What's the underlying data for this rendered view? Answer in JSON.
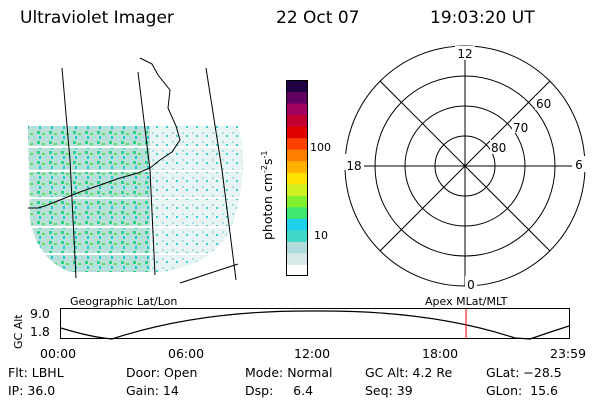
{
  "header": {
    "title": "Ultraviolet Imager",
    "date": "22 Oct 07",
    "time": "19:03:20 UT"
  },
  "colorbar": {
    "label": "photon cm",
    "label_sup1": "-2",
    "label_mid": "s",
    "label_sup2": "-1",
    "ticks": [
      "100",
      "10"
    ],
    "colors": [
      "#ffffff",
      "#d8e8e8",
      "#b0dcdc",
      "#40d8c8",
      "#20d0e8",
      "#40e870",
      "#80f030",
      "#d0f020",
      "#ffe000",
      "#ffb000",
      "#ff8000",
      "#ff4000",
      "#e00000",
      "#c00030",
      "#a00060",
      "#600060",
      "#200040"
    ]
  },
  "polar": {
    "clock_labels": [
      "12",
      "18",
      "6",
      "0"
    ],
    "lat_labels": [
      "60",
      "70",
      "80"
    ]
  },
  "map": {
    "left_label": "Geographic Lat/Lon",
    "right_label": "Apex MLat/MLT"
  },
  "alt_plot": {
    "ylabel": "GC Alt",
    "yticks": [
      "9.0",
      "1.8"
    ],
    "xticks": [
      "00:00",
      "06:00",
      "12:00",
      "18:00",
      "23:59"
    ],
    "cursor_color": "#ff0000"
  },
  "status": {
    "flt": "Flt: LBHL",
    "ip": "IP: 36.0",
    "door": "Door: Open",
    "gain": "Gain: 14",
    "mode": "Mode: Normal",
    "dsp": "Dsp:     6.4",
    "gcalt": "GC Alt: 4.2 Re",
    "seq": "Seq: 39",
    "glat": "GLat: −28.5",
    "glon": "GLon:  15.6"
  }
}
